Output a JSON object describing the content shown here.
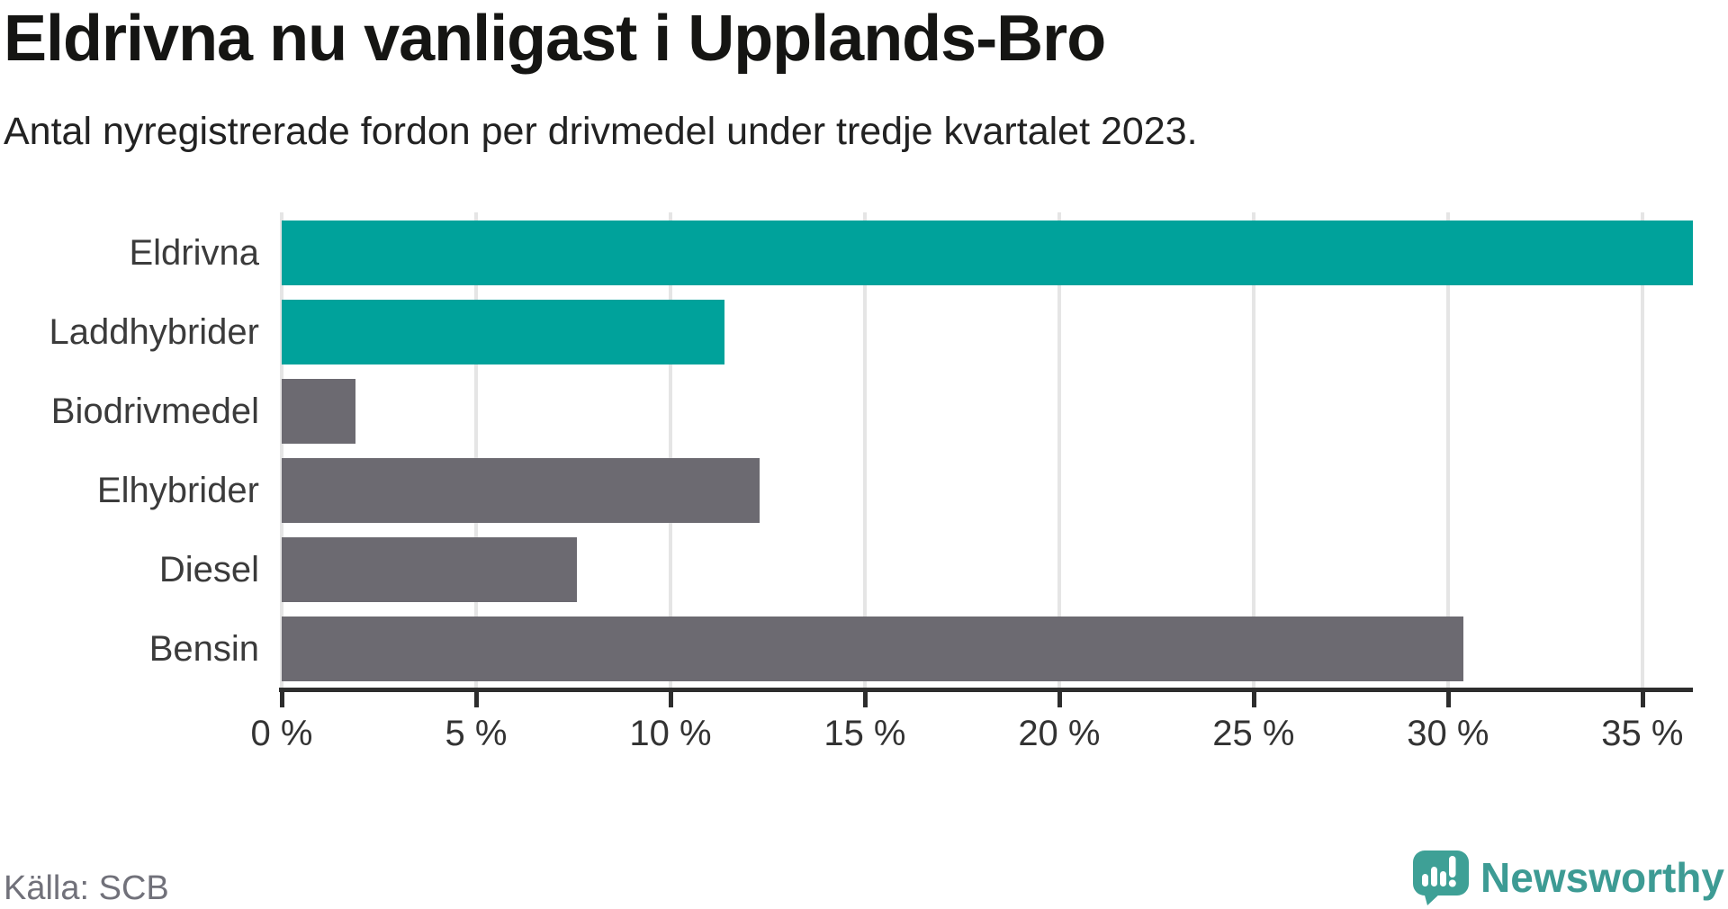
{
  "title": "Eldrivna nu vanligast i Upplands-Bro",
  "subtitle": "Antal nyregistrerade fordon per drivmedel under tredje kvartalet 2023.",
  "source": "Källa: SCB",
  "brand": {
    "name": "Newsworthy",
    "icon": "newsworthy-bubble-chart-icon"
  },
  "colors": {
    "accent_teal": "#00A29B",
    "bar_gray": "#6C6A71",
    "brand_teal": "#3D9B94",
    "grid": "#E5E5E5",
    "axis": "#2D2D2D",
    "title_text": "#151513",
    "muted_text": "#71717A"
  },
  "chart_data": {
    "type": "bar",
    "orientation": "horizontal",
    "title": "Eldrivna nu vanligast i Upplands-Bro",
    "subtitle": "Antal nyregistrerade fordon per drivmedel under tredje kvartalet 2023.",
    "categories": [
      "Eldrivna",
      "Laddhybrider",
      "Biodrivmedel",
      "Elhybrider",
      "Diesel",
      "Bensin"
    ],
    "values": [
      36.3,
      11.4,
      1.9,
      12.3,
      7.6,
      30.4
    ],
    "unit": "%",
    "bar_colors": [
      "#00A29B",
      "#00A29B",
      "#6C6A71",
      "#6C6A71",
      "#6C6A71",
      "#6C6A71"
    ],
    "xlim": [
      0,
      36.3
    ],
    "x_ticks": [
      0,
      5,
      10,
      15,
      20,
      25,
      30,
      35
    ],
    "x_tick_labels": [
      "0 %",
      "5 %",
      "10 %",
      "15 %",
      "20 %",
      "25 %",
      "30 %",
      "35 %"
    ],
    "grid": "vertical",
    "legend": "none",
    "source": "Källa: SCB"
  }
}
